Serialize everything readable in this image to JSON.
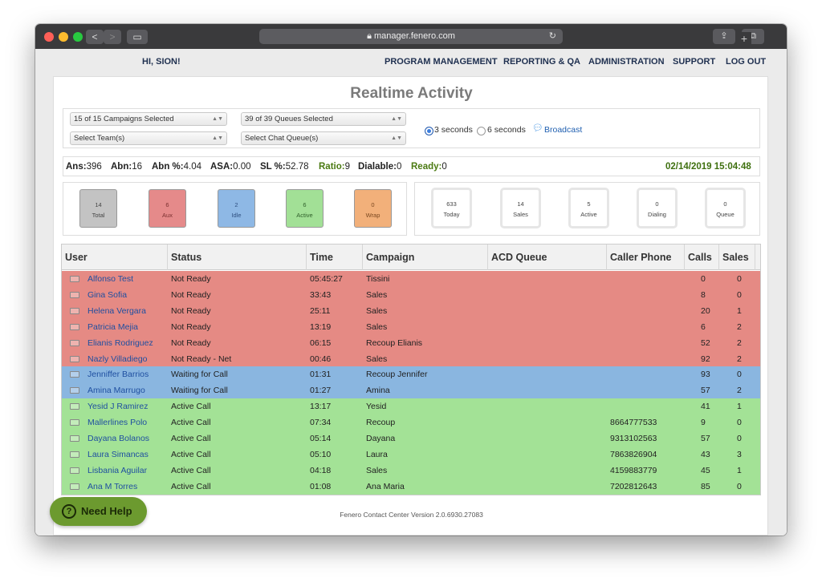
{
  "browser": {
    "url": "manager.fenero.com",
    "back": "<",
    "forward": ">",
    "sidebar_icon": "▭",
    "reload_icon": "↻",
    "share_icon": "⇪",
    "tabs_icon": "⧉",
    "new_tab": "+"
  },
  "topnav": {
    "greeting": "HI, SION!",
    "items": [
      "PROGRAM MANAGEMENT",
      "REPORTING & QA",
      "ADMINISTRATION",
      "SUPPORT",
      "LOG OUT"
    ]
  },
  "page_title": "Realtime Activity",
  "filters": {
    "campaigns": "15 of 15 Campaigns Selected",
    "queues": "39 of 39 Queues Selected",
    "team": "Select Team(s)",
    "chat_queue": "Select Chat Queue(s)",
    "refresh_3": "3 seconds",
    "refresh_6": "6 seconds",
    "refresh_selected": "3 seconds",
    "broadcast": "Broadcast"
  },
  "stats": {
    "ans_label": "Ans:",
    "ans": "396",
    "abn_label": "Abn:",
    "abn": "16",
    "abn_pct_label": "Abn %:",
    "abn_pct": "4.04",
    "asa_label": "ASA:",
    "asa": "0.00",
    "sl_label": "SL %:",
    "sl": "52.78",
    "ratio_label": "Ratio:",
    "ratio": "9",
    "dialable_label": "Dialable:",
    "dialable": "0",
    "ready_label": "Ready:",
    "ready": "0",
    "datetime": "02/14/2019 15:04:48"
  },
  "agent_tiles": [
    {
      "count": "14",
      "label": "Total",
      "color": "#c3c3c3"
    },
    {
      "count": "6",
      "label": "Aux",
      "color": "#e58a8a"
    },
    {
      "count": "2",
      "label": "Idle",
      "color": "#8eb8e5"
    },
    {
      "count": "6",
      "label": "Active",
      "color": "#a2e096"
    },
    {
      "count": "0",
      "label": "Wrap",
      "color": "#f2b07a"
    }
  ],
  "call_tiles": [
    {
      "count": "633",
      "label": "Today"
    },
    {
      "count": "14",
      "label": "Sales"
    },
    {
      "count": "5",
      "label": "Active"
    },
    {
      "count": "0",
      "label": "Dialing"
    },
    {
      "count": "0",
      "label": "Queue"
    }
  ],
  "table": {
    "columns": [
      "User",
      "Status",
      "Time",
      "Campaign",
      "ACD Queue",
      "Caller Phone",
      "Calls",
      "Sales"
    ],
    "rows": [
      {
        "user": "Alfonso Test",
        "status": "Not Ready",
        "time": "05:45:27",
        "campaign": "Tissini",
        "acd": "",
        "phone": "",
        "calls": "0",
        "sales": "0",
        "color": "#e58a84"
      },
      {
        "user": "Gina Sofia",
        "status": "Not Ready",
        "time": "33:43",
        "campaign": "Sales",
        "acd": "",
        "phone": "",
        "calls": "8",
        "sales": "0",
        "color": "#e58a84"
      },
      {
        "user": "Helena Vergara",
        "status": "Not Ready",
        "time": "25:11",
        "campaign": "Sales",
        "acd": "",
        "phone": "",
        "calls": "20",
        "sales": "1",
        "color": "#e58a84"
      },
      {
        "user": "Patricia Mejia",
        "status": "Not Ready",
        "time": "13:19",
        "campaign": "Sales",
        "acd": "",
        "phone": "",
        "calls": "6",
        "sales": "2",
        "color": "#e58a84"
      },
      {
        "user": "Elianis Rodriguez",
        "status": "Not Ready",
        "time": "06:15",
        "campaign": "Recoup Elianis",
        "acd": "",
        "phone": "",
        "calls": "52",
        "sales": "2",
        "color": "#e58a84"
      },
      {
        "user": "Nazly Villadiego",
        "status": "Not Ready - Net",
        "time": "00:46",
        "campaign": "Sales",
        "acd": "",
        "phone": "",
        "calls": "92",
        "sales": "2",
        "color": "#e58a84"
      },
      {
        "user": "Jenniffer Barrios",
        "status": "Waiting for Call",
        "time": "01:31",
        "campaign": "Recoup Jennifer",
        "acd": "",
        "phone": "",
        "calls": "93",
        "sales": "0",
        "color": "#8ab6e0"
      },
      {
        "user": "Amina Marrugo",
        "status": "Waiting for Call",
        "time": "01:27",
        "campaign": "Amina",
        "acd": "",
        "phone": "",
        "calls": "57",
        "sales": "2",
        "color": "#8ab6e0"
      },
      {
        "user": "Yesid J Ramirez",
        "status": "Active Call",
        "time": "13:17",
        "campaign": "Yesid",
        "acd": "",
        "phone": "",
        "calls": "41",
        "sales": "1",
        "color": "#a3e296"
      },
      {
        "user": "Mallerlines Polo",
        "status": "Active Call",
        "time": "07:34",
        "campaign": "Recoup",
        "acd": "",
        "phone": "8664777533",
        "calls": "9",
        "sales": "0",
        "color": "#a3e296"
      },
      {
        "user": "Dayana Bolanos",
        "status": "Active Call",
        "time": "05:14",
        "campaign": "Dayana",
        "acd": "",
        "phone": "9313102563",
        "calls": "57",
        "sales": "0",
        "color": "#a3e296"
      },
      {
        "user": "Laura Simancas",
        "status": "Active Call",
        "time": "05:10",
        "campaign": "Laura",
        "acd": "",
        "phone": "7863826904",
        "calls": "43",
        "sales": "3",
        "color": "#a3e296"
      },
      {
        "user": "Lisbania Aguilar",
        "status": "Active Call",
        "time": "04:18",
        "campaign": "Sales",
        "acd": "",
        "phone": "4159883779",
        "calls": "45",
        "sales": "1",
        "color": "#a3e296"
      },
      {
        "user": "Ana M Torres",
        "status": "Active Call",
        "time": "01:08",
        "campaign": "Ana Maria",
        "acd": "",
        "phone": "7202812643",
        "calls": "85",
        "sales": "0",
        "color": "#a3e296"
      }
    ]
  },
  "footer": "Fenero Contact Center Version 2.0.6930.27083",
  "help": {
    "label": "Need Help",
    "icon": "?"
  }
}
